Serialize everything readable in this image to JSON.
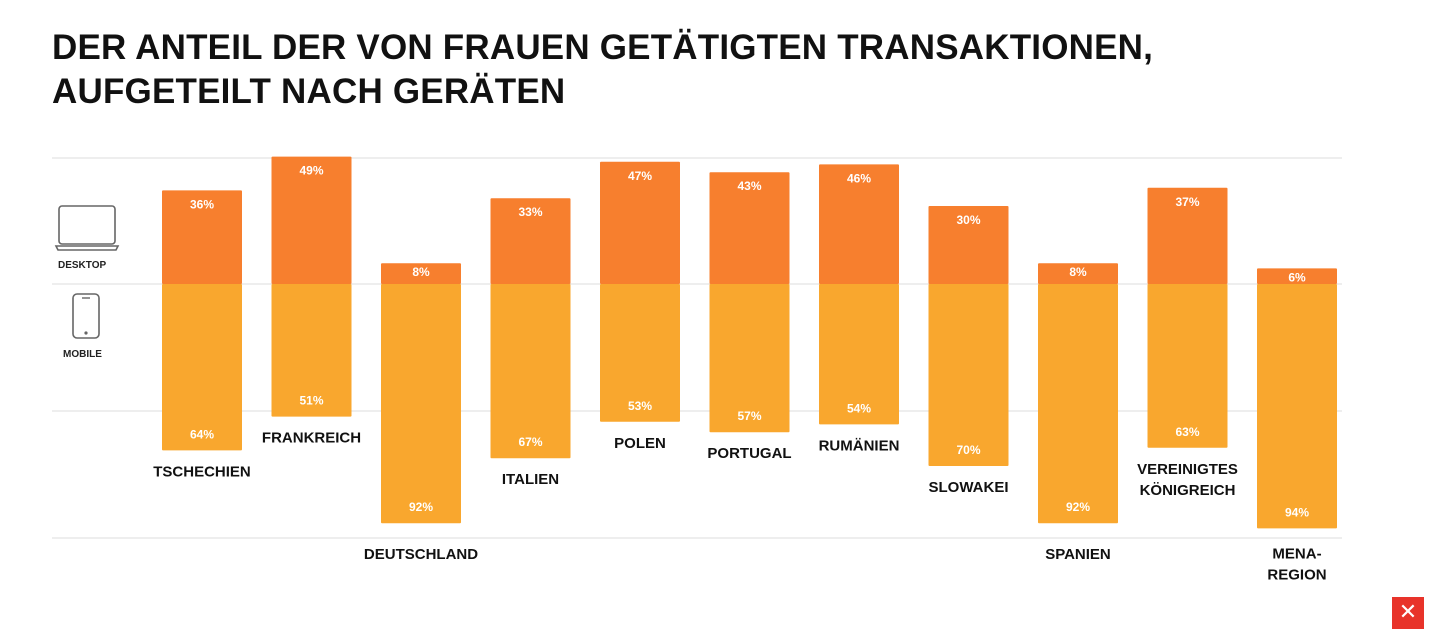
{
  "header": {
    "title_line1": "DER ANTEIL DER VON FRAUEN GETÄTIGTEN TRANSAKTIONEN,",
    "title_line2": "AUFGETEILT NACH GERÄTEN"
  },
  "legend": {
    "desktop": "DESKTOP",
    "mobile": "MOBILE",
    "desktop_icon": "laptop-icon",
    "mobile_icon": "smartphone-icon"
  },
  "colors": {
    "desktop": "#F77F2E",
    "mobile": "#F9A72E",
    "gridline": "#E3E3E3",
    "logo": "#E8332A"
  },
  "chart_data": {
    "type": "bar",
    "stacked": true,
    "categories": [
      [
        "TSCHECHIEN"
      ],
      [
        "FRANKREICH"
      ],
      [
        "DEUTSCHLAND"
      ],
      [
        "ITALIEN"
      ],
      [
        "POLEN"
      ],
      [
        "PORTUGAL"
      ],
      [
        "RUMÄNIEN"
      ],
      [
        "SLOWAKEI"
      ],
      [
        "SPANIEN"
      ],
      [
        "VEREINIGTES",
        "KÖNIGREICH"
      ],
      [
        "MENA-",
        "REGION"
      ]
    ],
    "series": [
      {
        "name": "DESKTOP",
        "values": [
          36,
          49,
          8,
          33,
          47,
          43,
          46,
          30,
          8,
          37,
          6
        ],
        "labels": [
          "36%",
          "49%",
          "8%",
          "33%",
          "47%",
          "43%",
          "46%",
          "30%",
          "8%",
          "37%",
          "6%"
        ]
      },
      {
        "name": "MOBILE",
        "values": [
          64,
          51,
          92,
          67,
          53,
          57,
          54,
          70,
          92,
          63,
          94
        ],
        "labels": [
          "64%",
          "51%",
          "92%",
          "67%",
          "53%",
          "57%",
          "54%",
          "70%",
          "92%",
          "63%",
          "94%"
        ]
      }
    ],
    "ylim": [
      0,
      100
    ],
    "grid": true,
    "legend_position": "left"
  },
  "brand": {
    "logo_icon": "xtb-logo-icon",
    "logo_glyph": "✕"
  }
}
